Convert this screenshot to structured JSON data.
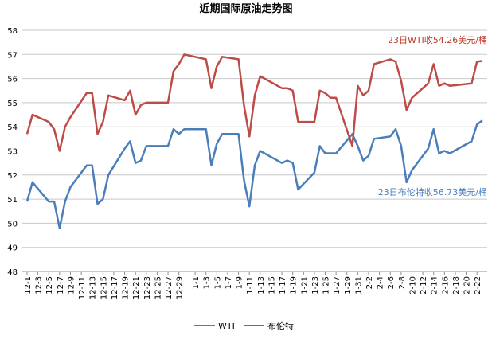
{
  "chart_data": {
    "type": "line",
    "title": "近期国际原油走势图",
    "ylim": [
      48,
      58
    ],
    "yticks": [
      48,
      49,
      50,
      51,
      52,
      53,
      54,
      55,
      56,
      57,
      58
    ],
    "grid": true,
    "legend_position": "bottom",
    "x_labels": [
      "12-1",
      "12-3",
      "12-5",
      "12-7",
      "12-9",
      "12-11",
      "12-13",
      "12-15",
      "12-17",
      "12-19",
      "12-21",
      "12-23",
      "12-25",
      "12-27",
      "12-29",
      "1-1",
      "1-3",
      "1-5",
      "1-7",
      "1-9",
      "1-11",
      "1-13",
      "1-15",
      "1-17",
      "1-19",
      "1-21",
      "1-23",
      "1-25",
      "1-27",
      "1-29",
      "1-31",
      "2-2",
      "2-4",
      "2-6",
      "2-8",
      "2-10",
      "2-12",
      "2-14",
      "2-16",
      "2-18",
      "2-20",
      "2-22"
    ],
    "x": [
      "12-1",
      "12-2",
      "12-5",
      "12-6",
      "12-7",
      "12-8",
      "12-9",
      "12-12",
      "12-13",
      "12-14",
      "12-15",
      "12-16",
      "12-19",
      "12-20",
      "12-21",
      "12-22",
      "12-23",
      "12-27",
      "12-28",
      "12-29",
      "12-30",
      "1-3",
      "1-4",
      "1-5",
      "1-6",
      "1-9",
      "1-10",
      "1-11",
      "1-12",
      "1-13",
      "1-17",
      "1-18",
      "1-19",
      "1-20",
      "1-23",
      "1-24",
      "1-25",
      "1-26",
      "1-27",
      "1-30",
      "1-31",
      "2-1",
      "2-2",
      "2-3",
      "2-6",
      "2-7",
      "2-8",
      "2-9",
      "2-10",
      "2-13",
      "2-14",
      "2-15",
      "2-16",
      "2-17",
      "2-21",
      "2-22",
      "2-23"
    ],
    "series": [
      {
        "name": "WTI",
        "color": "#4a7ebb",
        "values": [
          50.9,
          51.7,
          50.9,
          50.9,
          49.8,
          50.9,
          51.5,
          52.4,
          52.4,
          50.8,
          51.0,
          52.0,
          53.1,
          53.4,
          52.5,
          52.6,
          53.2,
          53.2,
          53.9,
          53.7,
          53.9,
          53.9,
          52.4,
          53.3,
          53.7,
          53.7,
          51.8,
          50.7,
          52.4,
          53.0,
          52.5,
          52.6,
          52.5,
          51.4,
          52.1,
          53.2,
          52.9,
          52.9,
          52.9,
          53.7,
          53.2,
          52.6,
          52.8,
          53.5,
          53.6,
          53.9,
          53.2,
          51.7,
          52.2,
          53.1,
          53.9,
          52.9,
          53.0,
          52.9,
          53.4,
          54.1,
          54.26
        ]
      },
      {
        "name": "布伦特",
        "color": "#be4b48",
        "values": [
          53.7,
          54.5,
          54.2,
          53.9,
          53.0,
          54.0,
          54.4,
          55.4,
          55.4,
          53.7,
          54.2,
          55.3,
          55.1,
          55.5,
          54.5,
          54.9,
          55.0,
          55.0,
          56.3,
          56.6,
          57.0,
          56.8,
          55.6,
          56.5,
          56.9,
          56.8,
          54.9,
          53.6,
          55.3,
          56.1,
          55.6,
          55.6,
          55.5,
          54.2,
          54.2,
          55.5,
          55.4,
          55.2,
          55.2,
          53.2,
          55.7,
          55.3,
          55.5,
          56.6,
          56.8,
          56.7,
          55.9,
          54.7,
          55.2,
          55.8,
          56.6,
          55.7,
          55.8,
          55.7,
          55.8,
          56.7,
          56.73
        ]
      }
    ],
    "annotations": [
      {
        "text": "23日WTI收54.26美元/桶",
        "color": "#c0392b"
      },
      {
        "text": "23日布伦特收56.73美元/桶",
        "color": "#4a7ebb"
      }
    ]
  }
}
